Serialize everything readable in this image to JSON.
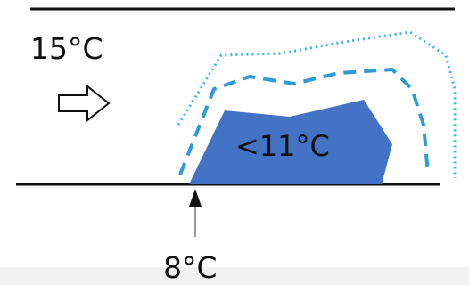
{
  "labels": {
    "inflow_temperature": "15°C",
    "zone_temperature": "<11°C",
    "source_temperature": "8°C"
  },
  "icons": {
    "flow_arrow": "arrow-right-outline-icon",
    "source_arrow": "arrow-up-icon"
  },
  "colors": {
    "wall": "#111111",
    "cold_zone": "#4472c4",
    "inner_isotherm": "#2e9ad6",
    "outer_isotherm": "#41b4e6",
    "arrow_fill": "#ffffff"
  }
}
